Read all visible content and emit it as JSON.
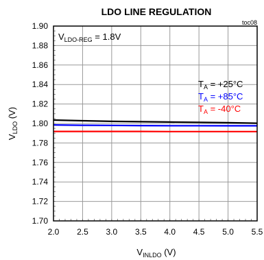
{
  "chart_data": {
    "type": "line",
    "title": "LDO LINE REGULATION",
    "figure_id": "toc08",
    "xlabel": {
      "main": "V",
      "sub": "INLDO",
      "unit": " (V)"
    },
    "ylabel": {
      "main": "V",
      "sub": "LDO",
      "unit": " (V)"
    },
    "xlim": [
      2.0,
      5.5
    ],
    "ylim": [
      1.7,
      1.9
    ],
    "x_ticks": [
      "2.0",
      "2.5",
      "3.0",
      "3.5",
      "4.0",
      "4.5",
      "5.0",
      "5.5"
    ],
    "y_ticks": [
      "1.70",
      "1.72",
      "1.74",
      "1.76",
      "1.78",
      "1.80",
      "1.82",
      "1.84",
      "1.86",
      "1.88",
      "1.90"
    ],
    "grid": true,
    "annotation": {
      "main": "V",
      "sub": "LDO-REG",
      "rest": " = 1.8V"
    },
    "series": [
      {
        "name": "T_A = +25°C",
        "label_main": "T",
        "label_sub": "A",
        "label_rest": " = +25°C",
        "color": "#000000",
        "x": [
          2.0,
          2.5,
          3.0,
          3.5,
          4.0,
          4.5,
          5.0,
          5.5
        ],
        "y": [
          1.8035,
          1.8028,
          1.8022,
          1.8018,
          1.8015,
          1.8012,
          1.8008,
          1.8003
        ]
      },
      {
        "name": "T_A = +85°C",
        "label_main": "T",
        "label_sub": "A",
        "label_rest": " = +85°C",
        "color": "#0000ff",
        "x": [
          2.0,
          2.5,
          3.0,
          3.5,
          4.0,
          4.5,
          5.0,
          5.5
        ],
        "y": [
          1.7985,
          1.7982,
          1.798,
          1.7978,
          1.7977,
          1.7977,
          1.7976,
          1.7976
        ]
      },
      {
        "name": "T_A = -40°C",
        "label_main": "T",
        "label_sub": "A",
        "label_rest": " = -40°C",
        "color": "#ff0000",
        "x": [
          2.0,
          2.5,
          3.0,
          3.5,
          4.0,
          4.5,
          5.0,
          5.5
        ],
        "y": [
          1.7918,
          1.7918,
          1.7918,
          1.7918,
          1.7917,
          1.7917,
          1.7917,
          1.7917
        ]
      }
    ]
  }
}
